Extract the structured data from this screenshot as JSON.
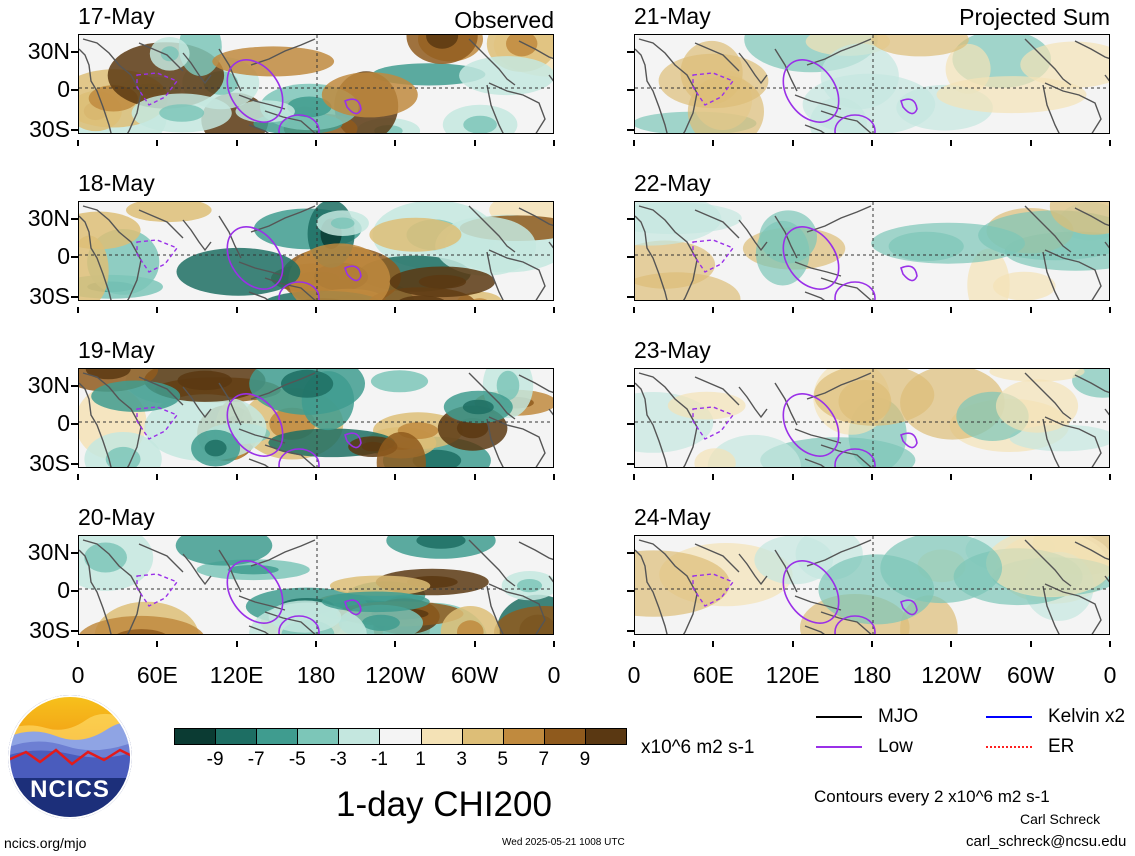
{
  "title": "1-day CHI200",
  "site": "ncics.org/mjo",
  "timestamp": "Wed 2025-05-21 1008 UTC",
  "author": "Carl Schreck",
  "email": "carl_schreck@ncsu.edu",
  "contour_note": "Contours every 2 x10^6 m2 s-1",
  "units": "x10^6 m2 s-1",
  "logo_text": "NCICS",
  "columns": [
    {
      "tag": "Observed",
      "dates": [
        "17-May",
        "18-May",
        "19-May",
        "20-May"
      ]
    },
    {
      "tag": "Projected Sum",
      "dates": [
        "21-May",
        "22-May",
        "23-May",
        "24-May"
      ]
    }
  ],
  "lat_labels": [
    "30N",
    "0",
    "30S"
  ],
  "lon_labels": [
    "0",
    "60E",
    "120E",
    "180",
    "120W",
    "60W",
    "0"
  ],
  "colorbar": {
    "ticks": [
      "-9",
      "-7",
      "-5",
      "-3",
      "-1",
      "1",
      "3",
      "5",
      "7",
      "9"
    ],
    "colors": [
      "#0b3b33",
      "#1d6e63",
      "#3f9c8f",
      "#7cc6b8",
      "#c4e7df",
      "#f4f4f4",
      "#f4e2b6",
      "#ddbe77",
      "#c08a3e",
      "#8f5a1d",
      "#5a3812"
    ]
  },
  "legend": [
    {
      "label": "MJO",
      "color": "#000000",
      "style": "solid"
    },
    {
      "label": "Kelvin x2",
      "color": "#0000ff",
      "style": "solid"
    },
    {
      "label": "Low",
      "color": "#9a30e8",
      "style": "solid"
    },
    {
      "label": "ER",
      "color": "#ff2020",
      "style": "dotted"
    }
  ]
}
